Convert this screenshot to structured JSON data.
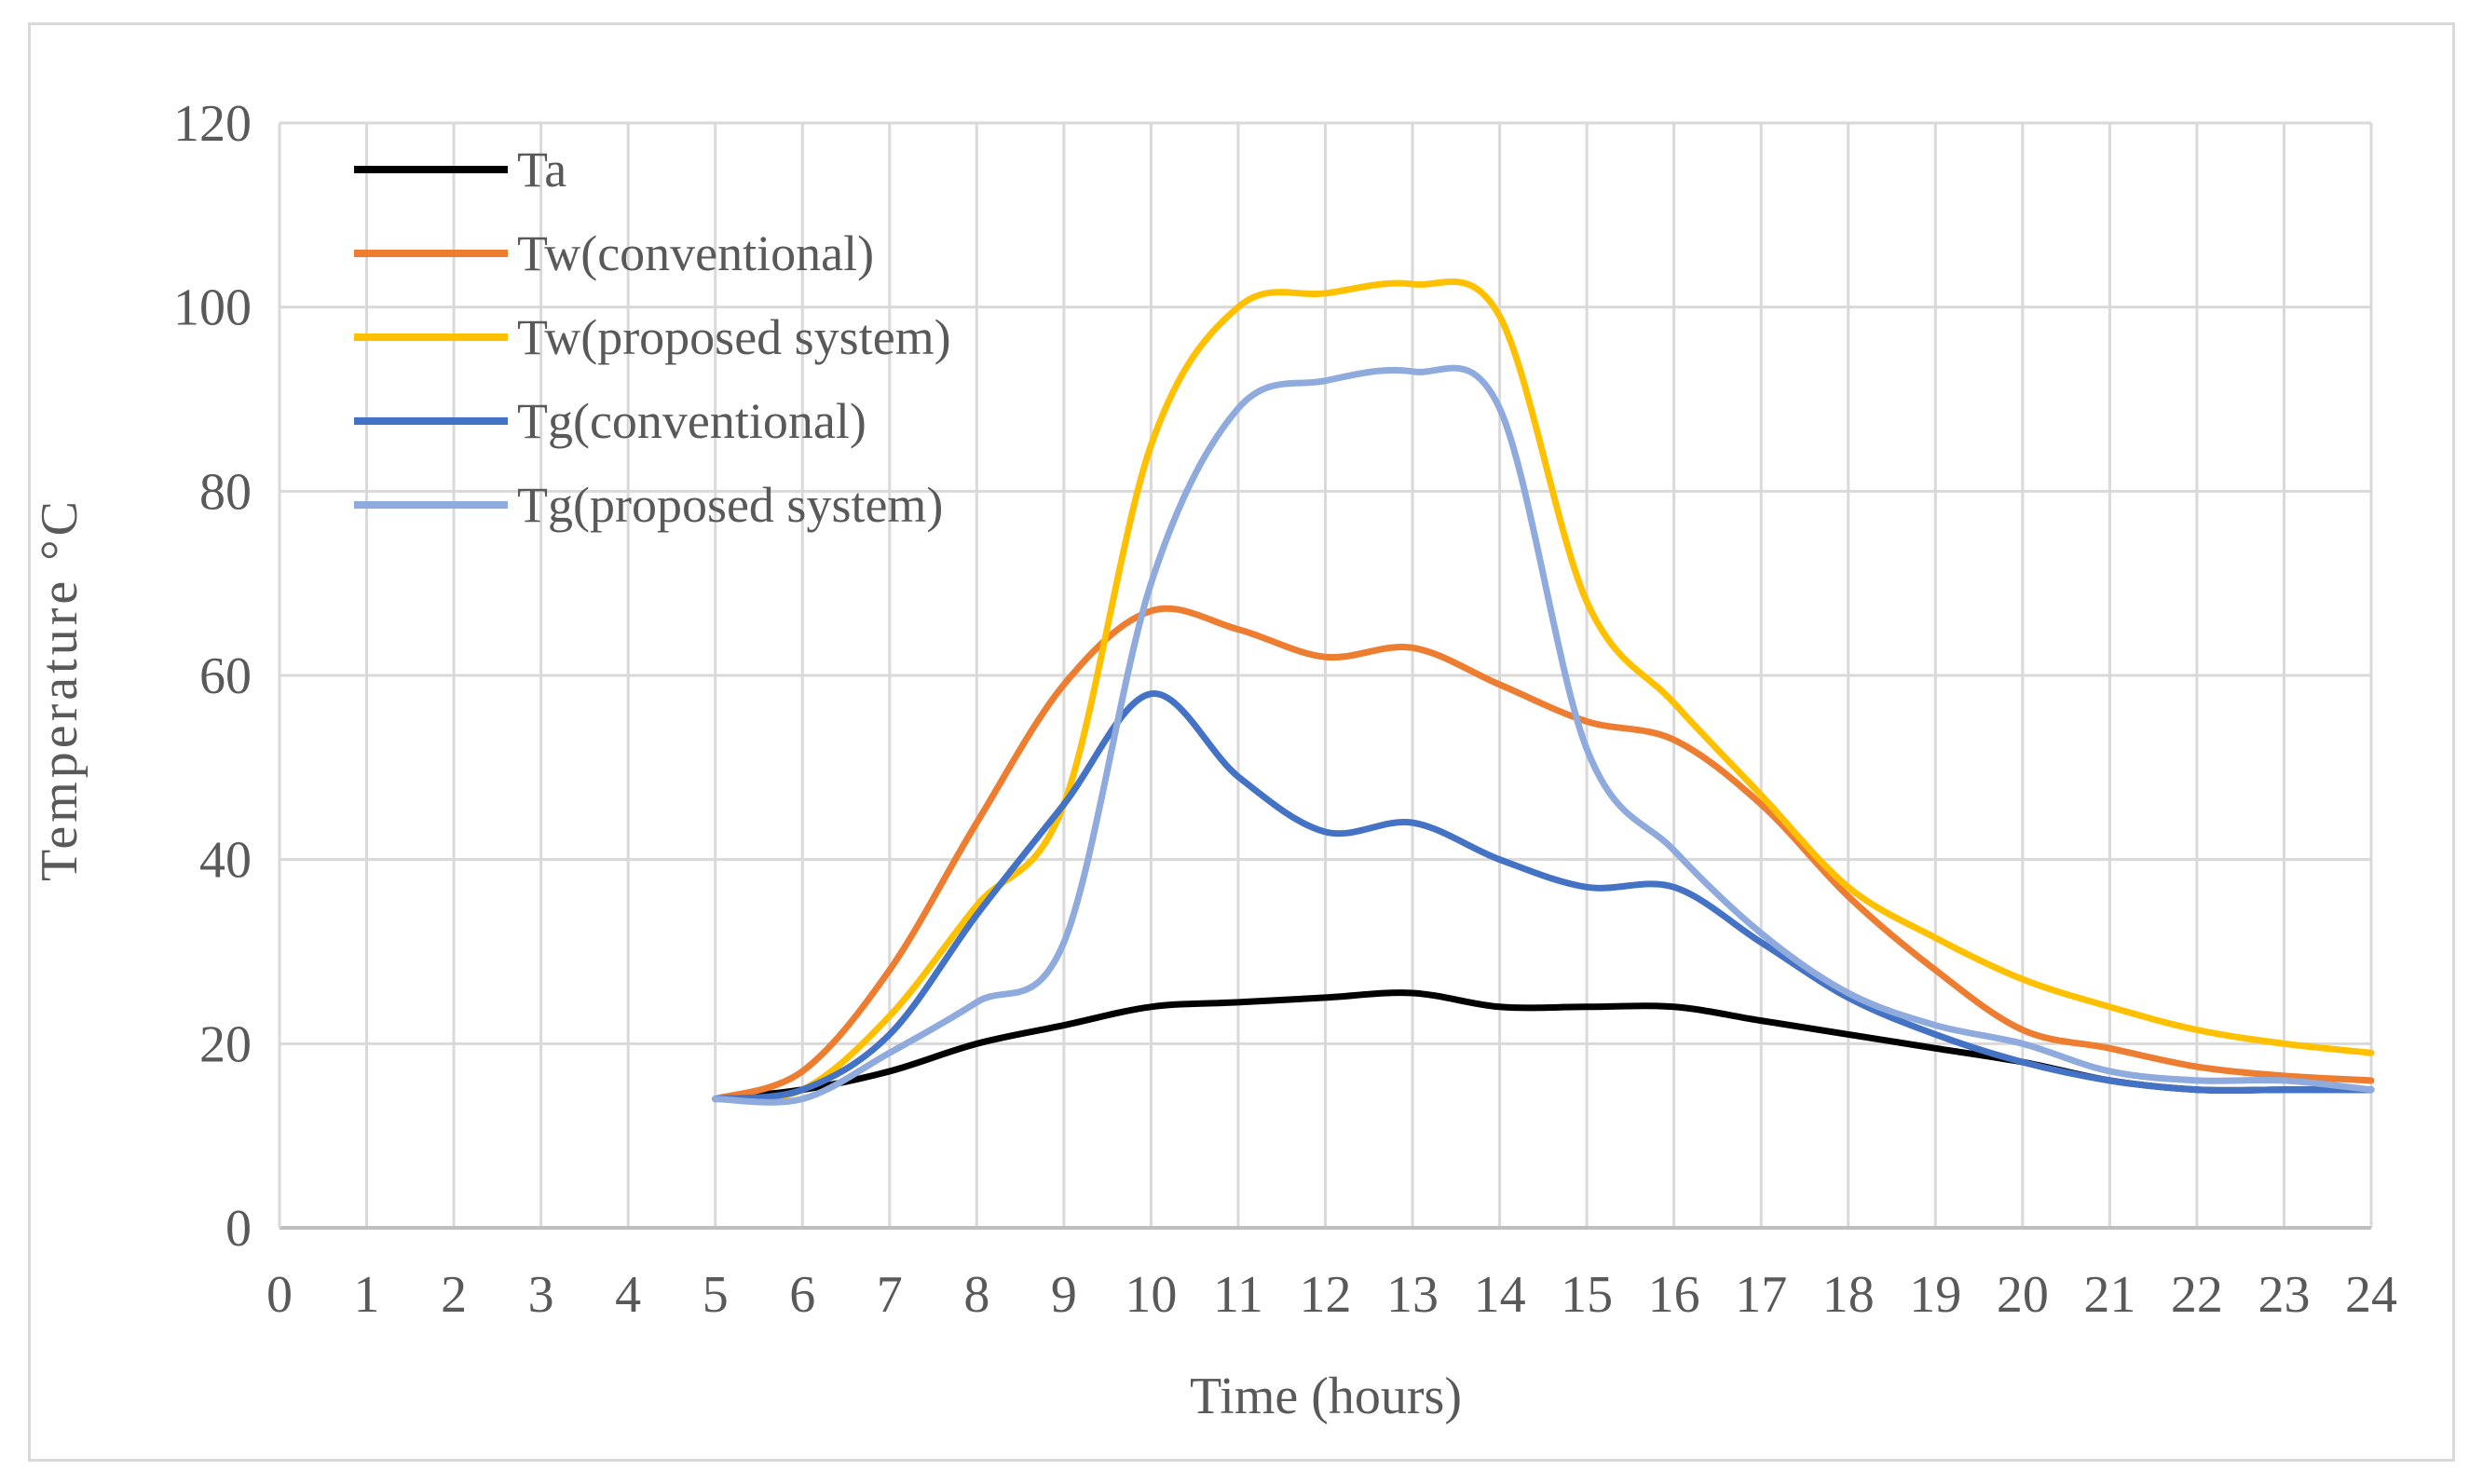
{
  "chart_data": {
    "type": "line",
    "title": "",
    "xlabel": "Time (hours)",
    "ylabel": "Temperature  °C",
    "xlim": [
      0,
      24
    ],
    "ylim": [
      0,
      120
    ],
    "x_ticks": [
      "0",
      "1",
      "2",
      "3",
      "4",
      "5",
      "6",
      "7",
      "8",
      "9",
      "10",
      "11",
      "12",
      "13",
      "14",
      "15",
      "16",
      "17",
      "18",
      "19",
      "20",
      "21",
      "22",
      "23",
      "24"
    ],
    "y_ticks": [
      "0",
      "20",
      "40",
      "60",
      "80",
      "100",
      "120"
    ],
    "grid": true,
    "legend_position": "top-left",
    "series": [
      {
        "name": "Ta",
        "color": "#000000",
        "x": [
          5,
          6,
          7,
          8,
          9,
          10,
          11,
          12,
          13,
          14,
          15,
          16,
          17,
          18,
          19,
          20,
          21,
          22,
          23,
          24
        ],
        "y": [
          14,
          15,
          17,
          20,
          22,
          24,
          24.5,
          25,
          25.5,
          24,
          24,
          24,
          22.5,
          21,
          19.5,
          18,
          16,
          15,
          15,
          15
        ]
      },
      {
        "name": "Tw(conventional)",
        "color": "#ED7D31",
        "x": [
          5,
          6,
          7,
          8,
          9,
          10,
          11,
          12,
          13,
          14,
          15,
          16,
          17,
          18,
          19,
          20,
          21,
          22,
          23,
          24
        ],
        "y": [
          14,
          17,
          28,
          44,
          59,
          67,
          65,
          62,
          63,
          59,
          55,
          53,
          46,
          36,
          28,
          21.5,
          19.5,
          17.5,
          16.5,
          16
        ]
      },
      {
        "name": "Tw(proposed system)",
        "color": "#FFC000",
        "x": [
          5,
          6,
          7,
          8,
          9,
          10,
          11,
          12,
          13,
          14,
          15,
          16,
          17,
          18,
          19,
          20,
          21,
          22,
          23,
          24
        ],
        "y": [
          14,
          15,
          23,
          35,
          46,
          85,
          100,
          101.5,
          102.5,
          99,
          68,
          57,
          47,
          37,
          31.5,
          27,
          24,
          21.5,
          20,
          19
        ]
      },
      {
        "name": "Tg(conventional)",
        "color": "#4472C4",
        "x": [
          5,
          6,
          7,
          8,
          9,
          10,
          11,
          12,
          13,
          14,
          15,
          16,
          17,
          18,
          19,
          20,
          21,
          22,
          23,
          24
        ],
        "y": [
          14,
          15,
          21,
          34,
          46,
          58,
          49,
          43,
          44,
          40,
          37,
          37,
          31,
          25,
          21,
          18,
          16,
          15,
          15,
          15
        ]
      },
      {
        "name": "Tg(proposed system)",
        "color": "#8FAADC",
        "x": [
          5,
          6,
          7,
          8,
          9,
          10,
          11,
          12,
          13,
          14,
          15,
          16,
          17,
          18,
          19,
          20,
          21,
          22,
          23,
          24
        ],
        "y": [
          14,
          14,
          19,
          24.5,
          31,
          70,
          89,
          92,
          93,
          89,
          52,
          41,
          32,
          25.5,
          22,
          20,
          17,
          16,
          16,
          15
        ]
      }
    ]
  }
}
